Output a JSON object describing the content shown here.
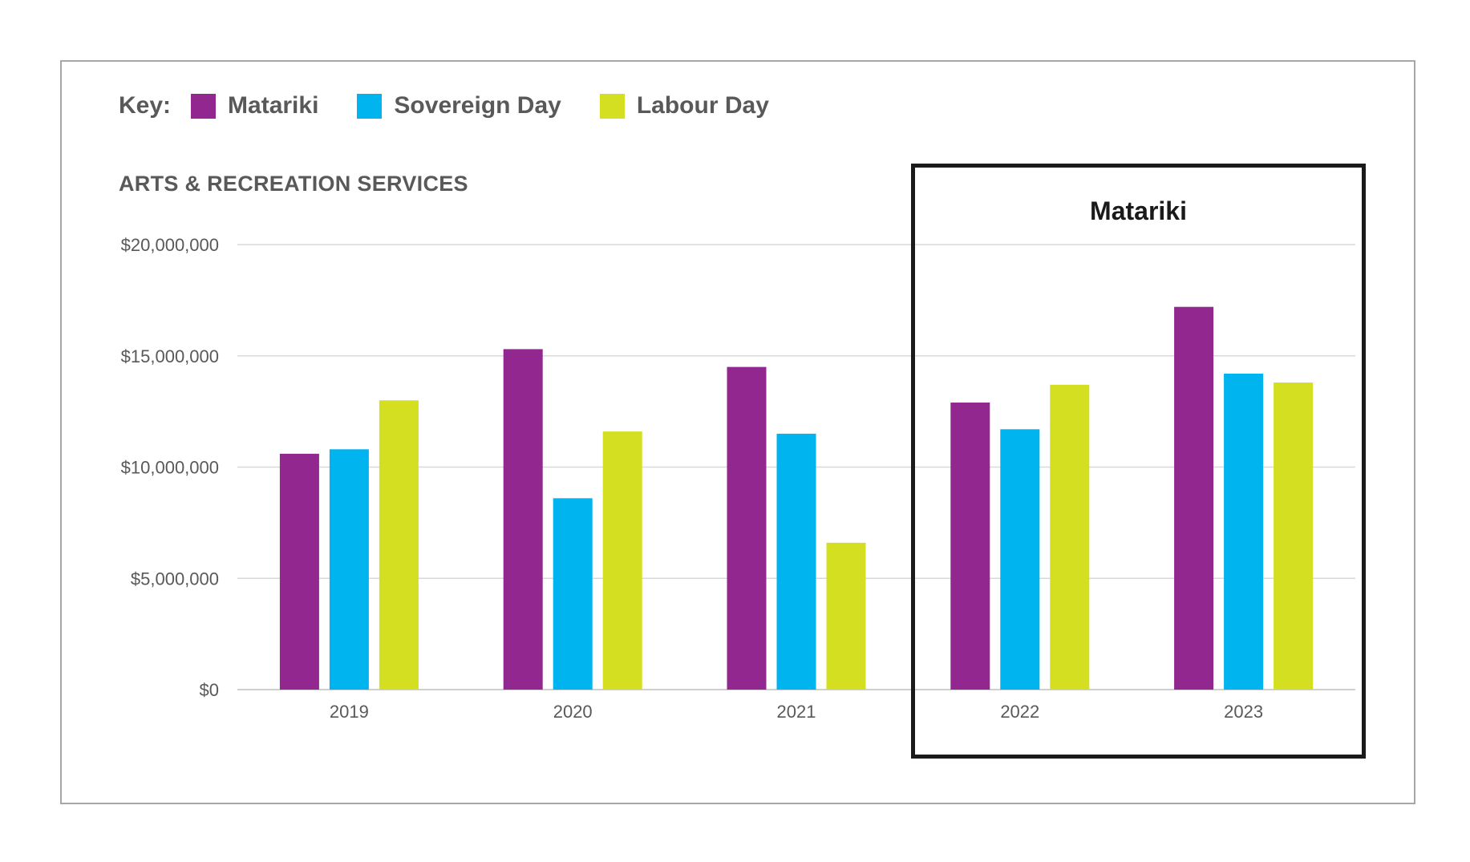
{
  "legend": {
    "key_label": "Key:",
    "items": [
      {
        "label": "Matariki",
        "color": "#92278f"
      },
      {
        "label": "Sovereign Day",
        "color": "#00b4ef"
      },
      {
        "label": "Labour Day",
        "color": "#d5df22"
      }
    ]
  },
  "highlight": {
    "label": "Matariki"
  },
  "chart_data": {
    "type": "bar",
    "title": "ARTS & RECREATION SERVICES",
    "xlabel": "",
    "ylabel": "",
    "categories": [
      "2019",
      "2020",
      "2021",
      "2022",
      "2023"
    ],
    "series": [
      {
        "name": "Matariki",
        "color": "#92278f",
        "values": [
          10600000,
          15300000,
          14500000,
          12900000,
          17200000
        ]
      },
      {
        "name": "Sovereign Day",
        "color": "#00b4ef",
        "values": [
          10800000,
          8600000,
          11500000,
          11700000,
          14200000
        ]
      },
      {
        "name": "Labour Day",
        "color": "#d5df22",
        "values": [
          13000000,
          11600000,
          6600000,
          13700000,
          13800000
        ]
      }
    ],
    "ylim": [
      0,
      20000000
    ],
    "yticks": [
      0,
      5000000,
      10000000,
      15000000,
      20000000
    ],
    "ytick_labels": [
      "$0",
      "$5,000,000",
      "$10,000,000",
      "$15,000,000",
      "$20,000,000"
    ],
    "grid": true,
    "legend_position": "top-left",
    "highlighted_categories": [
      "2022",
      "2023"
    ]
  }
}
